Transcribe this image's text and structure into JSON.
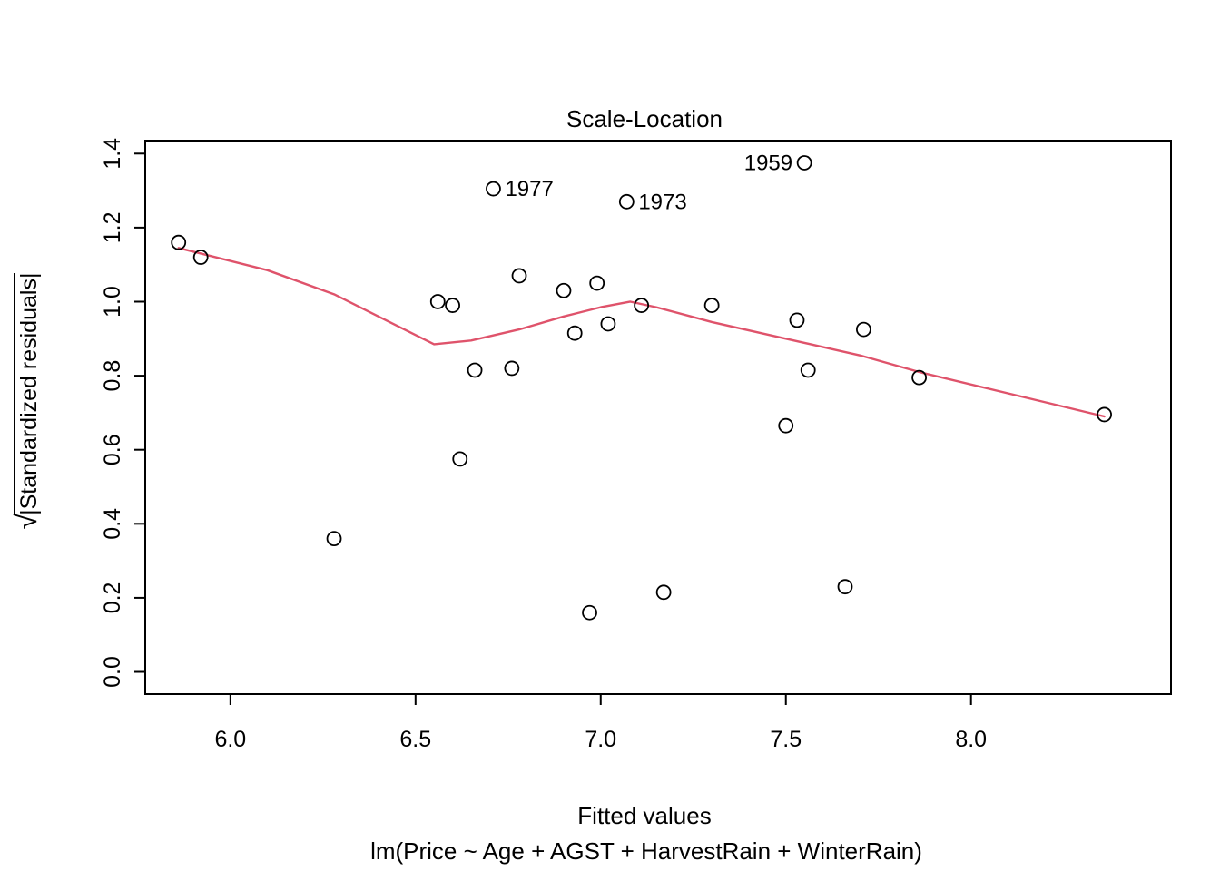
{
  "chart_data": {
    "type": "scatter",
    "title": "Scale-Location",
    "xlabel": "Fitted values",
    "sublabel": "lm(Price ~ Age + AGST + HarvestRain + WinterRain)",
    "ylabel": {
      "radical": "√",
      "body": "|Standardized residuals|"
    },
    "xlim": [
      5.77,
      8.54
    ],
    "ylim": [
      -0.06,
      1.435
    ],
    "x_ticks": [
      6.0,
      6.5,
      7.0,
      7.5,
      8.0
    ],
    "x_tick_labels": [
      "6.0",
      "6.5",
      "7.0",
      "7.5",
      "8.0"
    ],
    "y_ticks": [
      0.0,
      0.2,
      0.4,
      0.6,
      0.8,
      1.0,
      1.2,
      1.4
    ],
    "y_tick_labels": [
      "0.0",
      "0.2",
      "0.4",
      "0.6",
      "0.8",
      "1.0",
      "1.2",
      "1.4"
    ],
    "grid": false,
    "smooth_line_color": "#DF536B",
    "point_color": "#000000",
    "background_color": "#ffffff",
    "points": [
      {
        "x": 5.86,
        "y": 1.16
      },
      {
        "x": 5.92,
        "y": 1.12
      },
      {
        "x": 6.28,
        "y": 0.36
      },
      {
        "x": 6.56,
        "y": 1.0
      },
      {
        "x": 6.6,
        "y": 0.99
      },
      {
        "x": 6.62,
        "y": 0.575
      },
      {
        "x": 6.66,
        "y": 0.815
      },
      {
        "x": 6.71,
        "y": 1.305,
        "label": "1977",
        "label_side": "right"
      },
      {
        "x": 6.76,
        "y": 0.82
      },
      {
        "x": 6.78,
        "y": 1.07
      },
      {
        "x": 6.9,
        "y": 1.03
      },
      {
        "x": 6.93,
        "y": 0.915
      },
      {
        "x": 6.97,
        "y": 0.16
      },
      {
        "x": 6.99,
        "y": 1.05
      },
      {
        "x": 7.02,
        "y": 0.94
      },
      {
        "x": 7.07,
        "y": 1.27,
        "label": "1973",
        "label_side": "right"
      },
      {
        "x": 7.11,
        "y": 0.99
      },
      {
        "x": 7.17,
        "y": 0.215
      },
      {
        "x": 7.3,
        "y": 0.99
      },
      {
        "x": 7.5,
        "y": 0.665
      },
      {
        "x": 7.53,
        "y": 0.95
      },
      {
        "x": 7.55,
        "y": 1.375,
        "label": "1959",
        "label_side": "left"
      },
      {
        "x": 7.56,
        "y": 0.815
      },
      {
        "x": 7.66,
        "y": 0.23
      },
      {
        "x": 7.71,
        "y": 0.925
      },
      {
        "x": 7.86,
        "y": 0.795
      },
      {
        "x": 8.36,
        "y": 0.695
      }
    ],
    "smooth_line": [
      {
        "x": 5.86,
        "y": 1.145
      },
      {
        "x": 6.1,
        "y": 1.085
      },
      {
        "x": 6.28,
        "y": 1.02
      },
      {
        "x": 6.45,
        "y": 0.935
      },
      {
        "x": 6.55,
        "y": 0.885
      },
      {
        "x": 6.65,
        "y": 0.895
      },
      {
        "x": 6.78,
        "y": 0.925
      },
      {
        "x": 6.9,
        "y": 0.96
      },
      {
        "x": 7.0,
        "y": 0.985
      },
      {
        "x": 7.08,
        "y": 1.0
      },
      {
        "x": 7.15,
        "y": 0.985
      },
      {
        "x": 7.3,
        "y": 0.945
      },
      {
        "x": 7.5,
        "y": 0.9
      },
      {
        "x": 7.7,
        "y": 0.855
      },
      {
        "x": 7.86,
        "y": 0.81
      },
      {
        "x": 8.36,
        "y": 0.69
      }
    ]
  }
}
